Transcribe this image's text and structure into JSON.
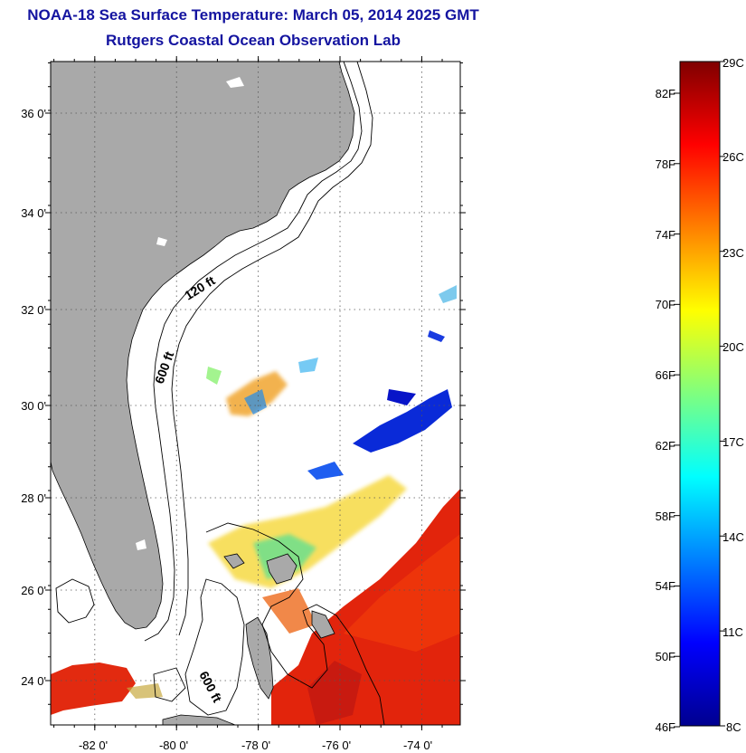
{
  "title": "NOAA-18 Sea Surface Temperature:  March 05, 2014 2025 GMT",
  "subtitle": "Rutgers Coastal Ocean Observation Lab",
  "map": {
    "lon_range": [
      -83,
      -73
    ],
    "lat_range": [
      23,
      37
    ],
    "lat_ticks": [
      {
        "value": 24,
        "label": "24 0'"
      },
      {
        "value": 26,
        "label": "26 0'"
      },
      {
        "value": 28,
        "label": "28 0'"
      },
      {
        "value": 30,
        "label": "30 0'"
      },
      {
        "value": 32,
        "label": "32 0'"
      },
      {
        "value": 34,
        "label": "34 0'"
      },
      {
        "value": 36,
        "label": "36 0'"
      }
    ],
    "lon_ticks": [
      {
        "value": -82,
        "label": "-82 0'"
      },
      {
        "value": -80,
        "label": "-80 0'"
      },
      {
        "value": -78,
        "label": "-78 0'"
      },
      {
        "value": -76,
        "label": "-76 0'"
      },
      {
        "value": -74,
        "label": "-74 0'"
      }
    ],
    "contour_labels": [
      "120 ft",
      "600 ft",
      "600 ft"
    ],
    "colors": {
      "land": "#a9a9a9",
      "grid": "#555555"
    }
  },
  "colorbar": {
    "fahrenheit_labels": [
      "82F",
      "78F",
      "74F",
      "70F",
      "66F",
      "62F",
      "58F",
      "54F",
      "50F",
      "46F"
    ],
    "celsius_labels": [
      "29C",
      "26C",
      "23C",
      "20C",
      "17C",
      "14C",
      "11C",
      "8C"
    ],
    "range_c": [
      8,
      29
    ],
    "colormap": "jet"
  }
}
